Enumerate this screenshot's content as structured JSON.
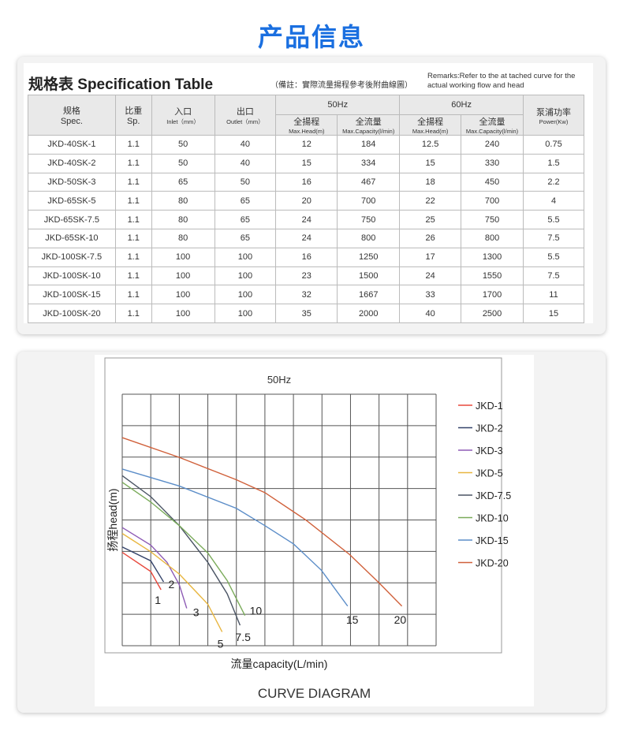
{
  "page_title": "产品信息",
  "spec_table": {
    "title": "规格表 Specification Table",
    "note": "（備註：實際流量揚程參考後附曲線圖）",
    "remarks": "Remarks:Refer to the at tached curve for the actual working flow and head",
    "headers": {
      "spec_cn": "规格",
      "spec_en": "Spec.",
      "sp_cn": "比重",
      "sp_en": "Sp.",
      "inlet_cn": "入口",
      "inlet_en": "Inlet（mm）",
      "outlet_cn": "出口",
      "outlet_en": "Outlet（mm）",
      "hz50": "50Hz",
      "hz60": "60Hz",
      "head_cn": "全揚程",
      "head_en": "Max.Head(m)",
      "cap_cn": "全流量",
      "cap_en": "Max.Capacity(l/min)",
      "power_cn": "泵浦功率",
      "power_en": "Power(Kw)"
    },
    "rows": [
      [
        "JKD-40SK-1",
        "1.1",
        "50",
        "40",
        "12",
        "184",
        "12.5",
        "240",
        "0.75"
      ],
      [
        "JKD-40SK-2",
        "1.1",
        "50",
        "40",
        "15",
        "334",
        "15",
        "330",
        "1.5"
      ],
      [
        "JKD-50SK-3",
        "1.1",
        "65",
        "50",
        "16",
        "467",
        "18",
        "450",
        "2.2"
      ],
      [
        "JKD-65SK-5",
        "1.1",
        "80",
        "65",
        "20",
        "700",
        "22",
        "700",
        "4"
      ],
      [
        "JKD-65SK-7.5",
        "1.1",
        "80",
        "65",
        "24",
        "750",
        "25",
        "750",
        "5.5"
      ],
      [
        "JKD-65SK-10",
        "1.1",
        "80",
        "65",
        "24",
        "800",
        "26",
        "800",
        "7.5"
      ],
      [
        "JKD-100SK-7.5",
        "1.1",
        "100",
        "100",
        "16",
        "1250",
        "17",
        "1300",
        "5.5"
      ],
      [
        "JKD-100SK-10",
        "1.1",
        "100",
        "100",
        "23",
        "1500",
        "24",
        "1550",
        "7.5"
      ],
      [
        "JKD-100SK-15",
        "1.1",
        "100",
        "100",
        "32",
        "1667",
        "33",
        "1700",
        "11"
      ],
      [
        "JKD-100SK-20",
        "1.1",
        "100",
        "100",
        "35",
        "2000",
        "40",
        "2500",
        "15"
      ]
    ]
  },
  "chart_data": {
    "type": "line",
    "title": "50Hz",
    "xlabel": "流量capacity(L/min)",
    "ylabel": "扬程head(m)",
    "caption": "CURVE DIAGRAM",
    "grid": true,
    "grid_columns": 11,
    "grid_rows": 8,
    "legend_position": "right",
    "series": [
      {
        "name": "JKD-1",
        "label": "1",
        "color": "#e8483c",
        "points": [
          [
            0,
            2.97
          ],
          [
            1,
            2.36
          ],
          [
            1.36,
            1.78
          ]
        ]
      },
      {
        "name": "JKD-2",
        "label": "2",
        "color": "#34436a",
        "points": [
          [
            0,
            3.14
          ],
          [
            1,
            2.7
          ],
          [
            1.45,
            2.03
          ]
        ]
      },
      {
        "name": "JKD-3",
        "label": "3",
        "color": "#8d5bb5",
        "points": [
          [
            0,
            3.76
          ],
          [
            1,
            3.2
          ],
          [
            1.57,
            2.65
          ],
          [
            2,
            1.94
          ],
          [
            2.26,
            1.19
          ]
        ]
      },
      {
        "name": "JKD-5",
        "label": "5",
        "color": "#e8b640",
        "points": [
          [
            0,
            3.57
          ],
          [
            1,
            2.99
          ],
          [
            2,
            2.28
          ],
          [
            3,
            1.32
          ],
          [
            3.5,
            0.44
          ]
        ]
      },
      {
        "name": "JKD-7.5",
        "label": "7.5",
        "color": "#4a5464",
        "points": [
          [
            0,
            5.41
          ],
          [
            1,
            4.74
          ],
          [
            2,
            3.82
          ],
          [
            3,
            2.65
          ],
          [
            3.68,
            1.65
          ],
          [
            4.13,
            0.65
          ]
        ]
      },
      {
        "name": "JKD-10",
        "label": "10",
        "color": "#7aab5a",
        "points": [
          [
            0,
            5.2
          ],
          [
            1,
            4.57
          ],
          [
            2,
            3.82
          ],
          [
            3,
            2.95
          ],
          [
            3.68,
            2.07
          ],
          [
            4.3,
            0.96
          ]
        ]
      },
      {
        "name": "JKD-15",
        "label": "15",
        "color": "#5b8dc8",
        "points": [
          [
            0,
            5.62
          ],
          [
            2,
            5.08
          ],
          [
            4,
            4.37
          ],
          [
            5,
            3.82
          ],
          [
            6,
            3.24
          ],
          [
            6.98,
            2.4
          ],
          [
            7.9,
            1.26
          ]
        ]
      },
      {
        "name": "JKD-20",
        "label": "20",
        "color": "#d0603a",
        "points": [
          [
            0,
            6.62
          ],
          [
            2,
            5.99
          ],
          [
            4,
            5.28
          ],
          [
            5,
            4.87
          ],
          [
            6.45,
            3.99
          ],
          [
            7.97,
            2.9
          ],
          [
            9,
            2.0
          ],
          [
            9.8,
            1.26
          ]
        ]
      }
    ]
  }
}
